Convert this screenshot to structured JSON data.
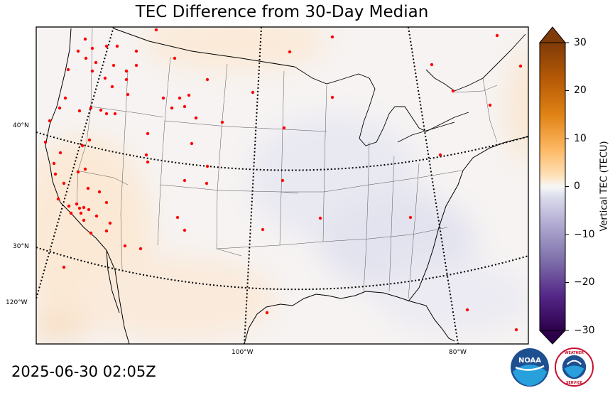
{
  "title": "TEC Difference from 30-Day Median",
  "timestamp": "2025-06-30 02:05Z",
  "colorbar": {
    "label": "Vertical TEC (TECU)",
    "ticks": [
      "30",
      "20",
      "10",
      "0",
      "−10",
      "−20",
      "−30"
    ],
    "range": [
      -30,
      30
    ],
    "low_color": "#2d0a4e",
    "high_color": "#7f3b08",
    "zero_color": "#f7f7f7"
  },
  "latitude_labels": [
    "40°N",
    "30°N",
    "120°W"
  ],
  "longitude_labels": [
    "100°W",
    "80°W"
  ],
  "stations_color": "#ff0000",
  "logos": {
    "noaa_text": "NOAA",
    "nws_text": "NATIONAL WEATHER SERVICE"
  }
}
